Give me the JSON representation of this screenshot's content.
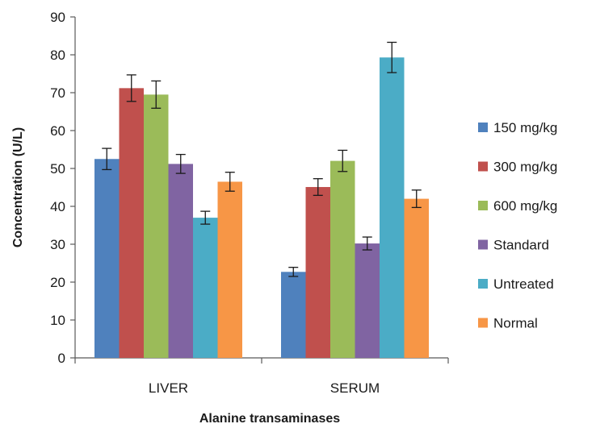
{
  "chart_data": {
    "type": "bar",
    "title": "",
    "xlabel": "Alanine transaminases",
    "ylabel": "Concentration (U/L)",
    "ylim": [
      0,
      90
    ],
    "yticks": [
      0,
      10,
      20,
      30,
      40,
      50,
      60,
      70,
      80,
      90
    ],
    "grid": false,
    "legend_position": "right",
    "error_bars": true,
    "categories": [
      "LIVER",
      "SERUM"
    ],
    "series": [
      {
        "name": "150 mg/kg",
        "color": "#4f81bd",
        "values": [
          52.5,
          22.7
        ],
        "errors": [
          2.8,
          1.2
        ]
      },
      {
        "name": "300 mg/kg",
        "color": "#c0504d",
        "values": [
          71.2,
          45.1
        ],
        "errors": [
          3.5,
          2.2
        ]
      },
      {
        "name": "600 mg/kg",
        "color": "#9bbb59",
        "values": [
          69.5,
          52.0
        ],
        "errors": [
          3.6,
          2.8
        ]
      },
      {
        "name": "Standard",
        "color": "#8064a2",
        "values": [
          51.2,
          30.2
        ],
        "errors": [
          2.5,
          1.7
        ]
      },
      {
        "name": "Untreated",
        "color": "#4bacc6",
        "values": [
          37.0,
          79.3
        ],
        "errors": [
          1.7,
          4.0
        ]
      },
      {
        "name": "Normal",
        "color": "#f79646",
        "values": [
          46.5,
          42.0
        ],
        "errors": [
          2.5,
          2.3
        ]
      }
    ]
  }
}
